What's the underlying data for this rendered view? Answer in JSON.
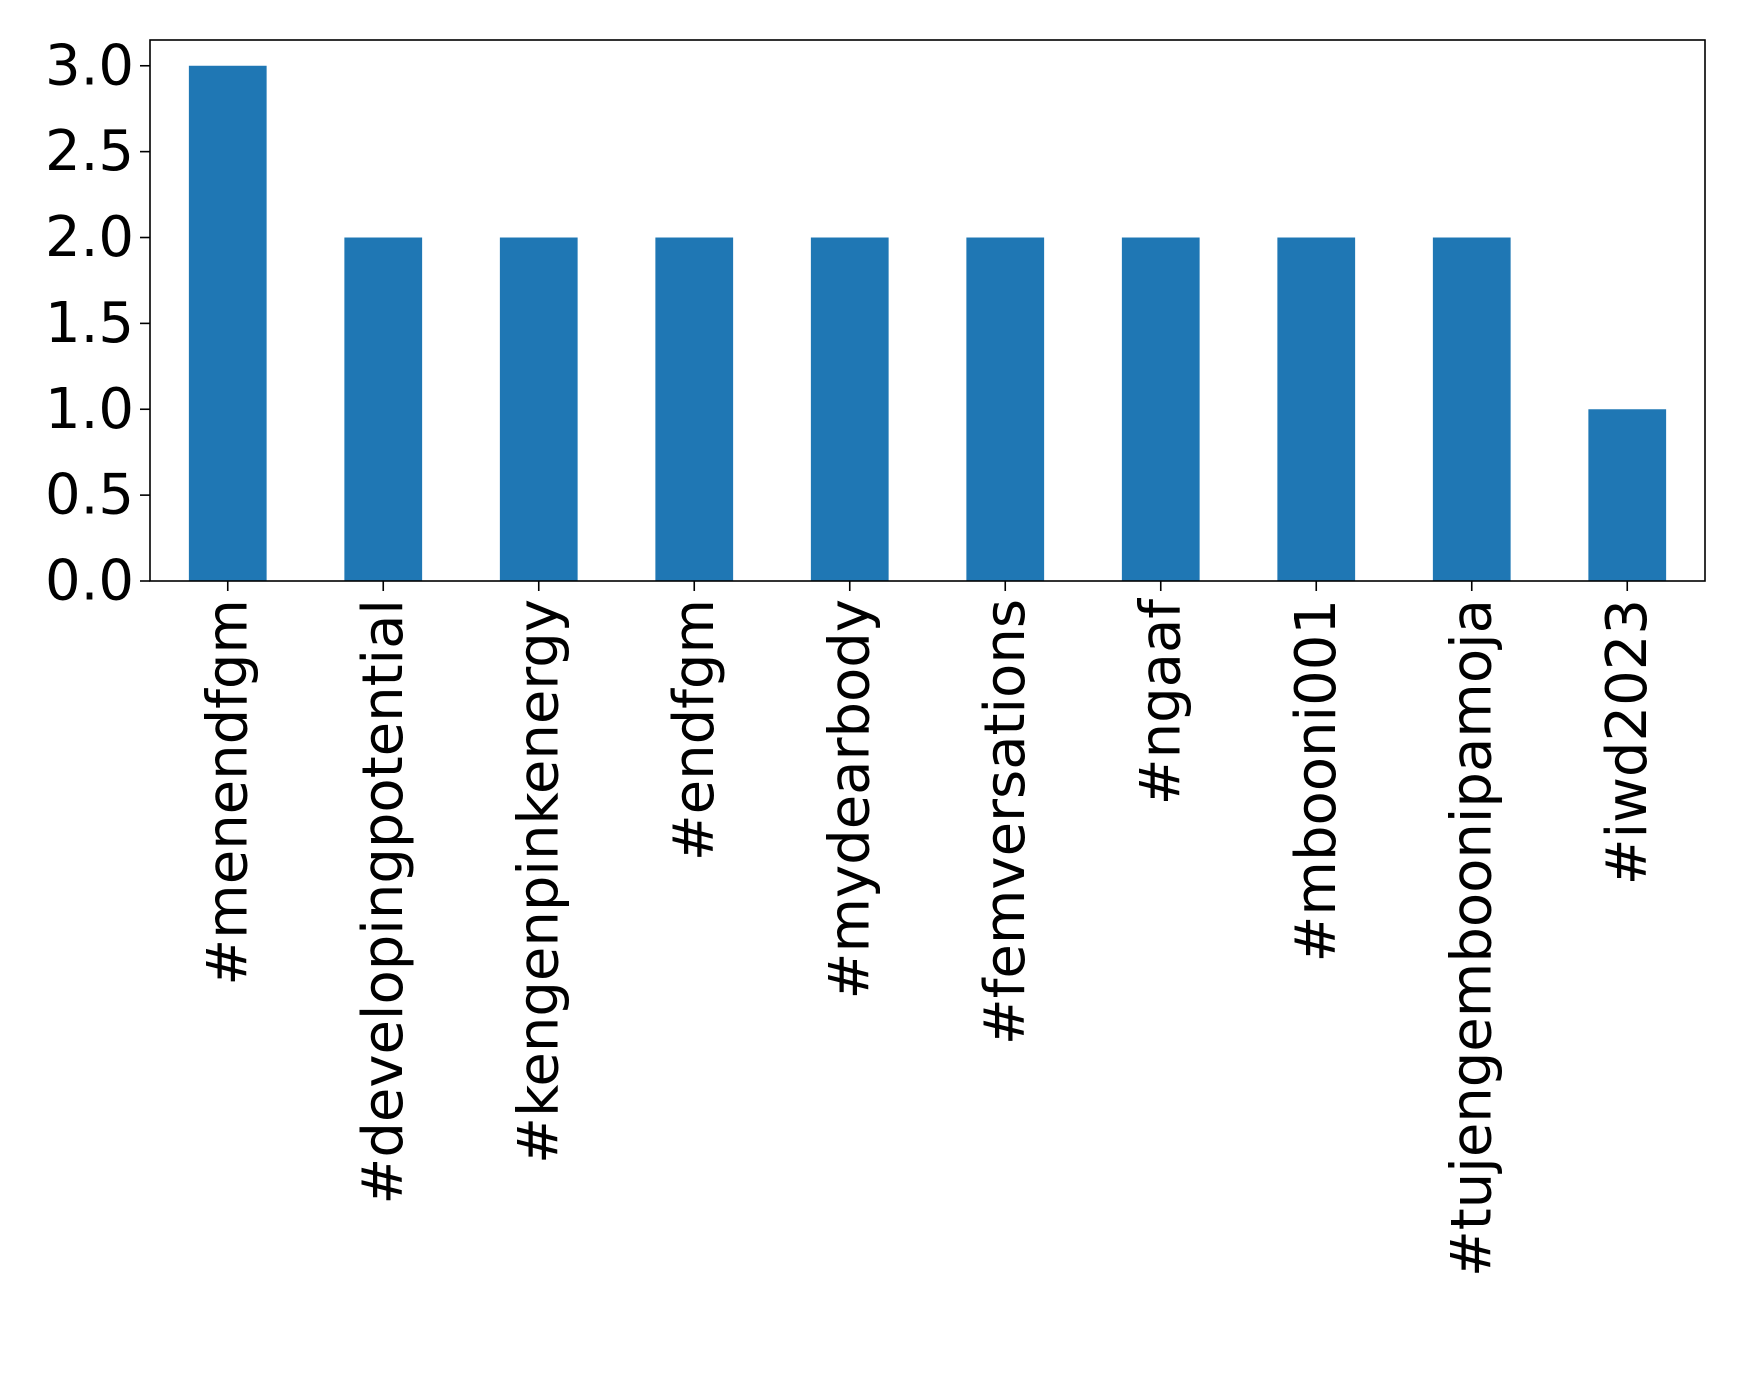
{
  "chart_data": {
    "type": "bar",
    "title": "",
    "xlabel": "",
    "ylabel": "",
    "categories": [
      "#menendfgm",
      "#developingpotential",
      "#kengenpinkenergy",
      "#endfgm",
      "#mydearbody",
      "#femversations",
      "#ngaaf",
      "#mbooni001",
      "#tujengemboonipamoja",
      "#iwd2023"
    ],
    "values": [
      3,
      2,
      2,
      2,
      2,
      2,
      2,
      2,
      2,
      1
    ],
    "ylim": [
      0,
      3.15
    ],
    "yticks": [
      "0.0",
      "0.5",
      "1.0",
      "1.5",
      "2.0",
      "2.5",
      "3.0"
    ],
    "grid": false,
    "legend": "none",
    "bar_color": "#1f77b4",
    "tick_label_rotation": "vertical"
  }
}
